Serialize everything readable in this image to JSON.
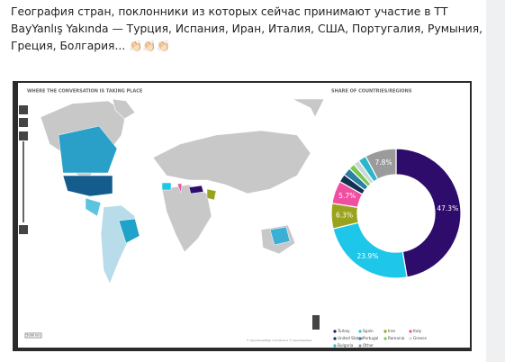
{
  "post": {
    "text_lines": [
      "География стран, поклонники из которых сейчас принимают участие в ТТ",
      "BayYanlış Yakında — Турция, Испания, Иран, Италия, США, Португалия, Румыния,",
      "Греция, Болгария... 👏🏻👏🏻👏🏻"
    ]
  },
  "map": {
    "title": "WHERE THE CONVERSATION IS TAKING PLACE",
    "scale": "5000 km",
    "attribution": "© OpenStreetMap contributors © OpenMapTiles"
  },
  "chart_data": {
    "type": "pie",
    "title": "SHARE OF COUNTRIES/REGIONS",
    "donut": true,
    "categories": [
      "Turkey",
      "Spain",
      "Iran",
      "Italy",
      "United States",
      "Portugal",
      "Romania",
      "Greece",
      "Bulgaria",
      "Other"
    ],
    "values": [
      47.3,
      23.9,
      6.3,
      5.7,
      2,
      2,
      1.5,
      1.5,
      2,
      7.8
    ],
    "value_labels": [
      "47.3%",
      "23.9%",
      "6.3%",
      "5.7%",
      null,
      null,
      null,
      null,
      null,
      "7.8%"
    ],
    "colors": [
      "#2d0c6b",
      "#1ec6ea",
      "#9aa31c",
      "#f04f9f",
      "#12304f",
      "#2a7fa3",
      "#78c94a",
      "#cdd6da",
      "#2ab7c9",
      "#9b9b9b"
    ]
  }
}
